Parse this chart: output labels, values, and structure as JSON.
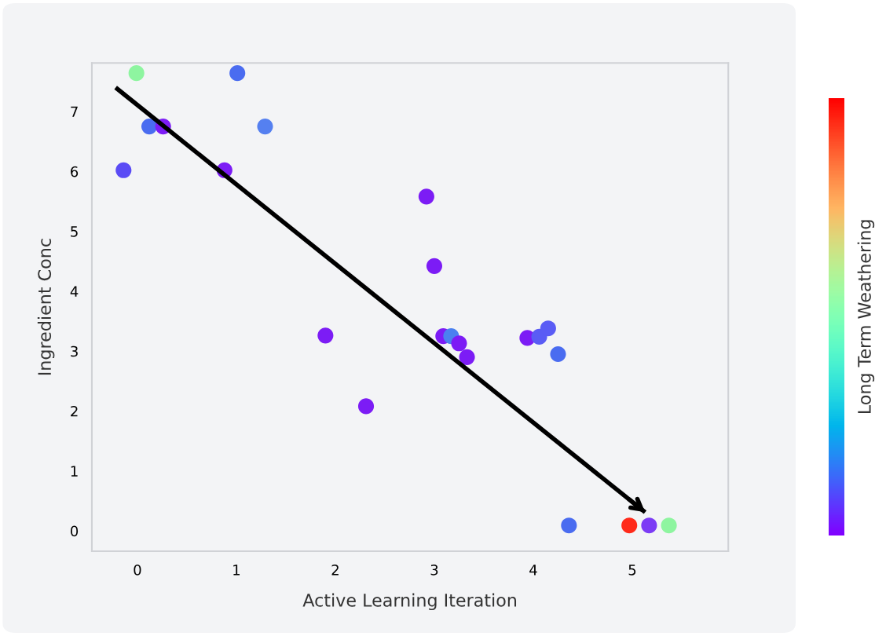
{
  "chart_data": {
    "type": "scatter",
    "xlabel": "Active Learning Iteration",
    "ylabel": "Ingredient Conc",
    "clabel": "Long Term Weathering",
    "xlim": [
      -0.46,
      5.97
    ],
    "ylim": [
      -0.34,
      7.81
    ],
    "xticks": [
      0,
      1,
      2,
      3,
      4,
      5
    ],
    "yticks": [
      0,
      1,
      2,
      3,
      4,
      5,
      6,
      7
    ],
    "grid": false,
    "series": [
      {
        "marker": "circle",
        "x": [
          -0.14,
          -0.01,
          0.12,
          0.26,
          0.88,
          1.01,
          1.29,
          1.9,
          2.31,
          2.92,
          3.0,
          3.09,
          3.17,
          3.25,
          3.33,
          3.94,
          4.06,
          4.15,
          4.25,
          4.36,
          4.97,
          5.17,
          5.37
        ],
        "values": [
          6.02,
          7.64,
          6.75,
          6.75,
          6.02,
          7.64,
          6.75,
          3.26,
          2.08,
          5.58,
          4.42,
          3.25,
          3.25,
          3.13,
          2.9,
          3.22,
          3.24,
          3.38,
          2.95,
          0.09,
          0.09,
          0.09,
          0.09
        ],
        "colors": [
          "#5a4bf5",
          "#8ef5a0",
          "#4a6cf0",
          "#7c1cf5",
          "#7c1cf5",
          "#4a6cf0",
          "#5580f0",
          "#7c1cf5",
          "#7c1cf5",
          "#7c1cf5",
          "#7c1cf5",
          "#7c1cf5",
          "#4a80f0",
          "#7c1cf5",
          "#7c1cf5",
          "#7c1cf5",
          "#5a5cf5",
          "#5a5cf5",
          "#4a6cf0",
          "#4a6cf0",
          "#ff2a1a",
          "#7c3cf5",
          "#8ef5a0"
        ]
      },
      {
        "type": "line",
        "marker": "none",
        "x": [
          -0.22,
          5.13
        ],
        "values": [
          7.4,
          0.31
        ],
        "color": "#000000"
      }
    ]
  }
}
